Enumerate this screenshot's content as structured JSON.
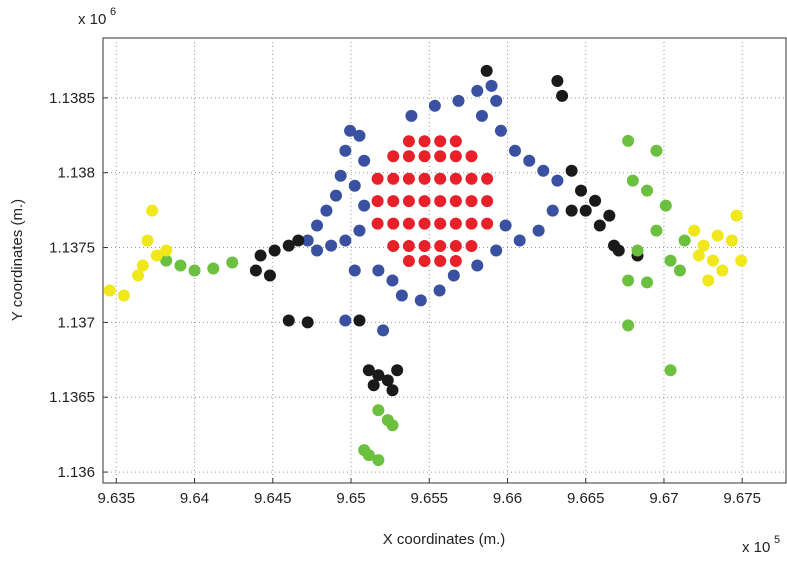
{
  "chart_data": {
    "type": "scatter",
    "xlabel": "X coordinates (m.)",
    "ylabel": "Y coordinates (m.)",
    "x_multiplier": "x 10",
    "x_exponent": "5",
    "y_multiplier": "x 10",
    "y_exponent": "6",
    "xlim": [
      963415,
      967780
    ],
    "ylim": [
      1135927,
      1138900
    ],
    "xticks": [
      {
        "value": 963500,
        "label": "9.635"
      },
      {
        "value": 964000,
        "label": "9.64"
      },
      {
        "value": 964500,
        "label": "9.645"
      },
      {
        "value": 965000,
        "label": "9.65"
      },
      {
        "value": 965500,
        "label": "9.655"
      },
      {
        "value": 966000,
        "label": "9.66"
      },
      {
        "value": 966500,
        "label": "9.665"
      },
      {
        "value": 967000,
        "label": "9.67"
      },
      {
        "value": 967500,
        "label": "9.675"
      }
    ],
    "yticks": [
      {
        "value": 1136000,
        "label": "1.136"
      },
      {
        "value": 1136500,
        "label": "1.1365"
      },
      {
        "value": 1137000,
        "label": "1.137"
      },
      {
        "value": 1137500,
        "label": "1.1375"
      },
      {
        "value": 1138000,
        "label": "1.138"
      },
      {
        "value": 1138500,
        "label": "1.1385"
      }
    ],
    "grid": true,
    "series": [
      {
        "color": "#3a50a0",
        "x": [
          964723,
          964783,
          964843,
          964904,
          964934,
          964964,
          964994,
          965054,
          965084,
          964783,
          964873,
          964964,
          965054,
          965084,
          965024,
          965175,
          965265,
          965325,
          965446,
          965566,
          965386,
          965536,
          965687,
          965807,
          965898,
          965928,
          965837,
          965958,
          966048,
          966139,
          966229,
          966319,
          966289,
          966199,
          966078,
          965988,
          965928,
          965807,
          965657,
          964964,
          965205,
          965024
        ],
        "values": [
          1137547,
          1137647,
          1137747,
          1137847,
          1137980,
          1138147,
          1138280,
          1138247,
          1138080,
          1137480,
          1137513,
          1137547,
          1137613,
          1137780,
          1137913,
          1137347,
          1137280,
          1137180,
          1137147,
          1137213,
          1138380,
          1138447,
          1138480,
          1138547,
          1138580,
          1138480,
          1138380,
          1138280,
          1138147,
          1138080,
          1138013,
          1137947,
          1137747,
          1137613,
          1137547,
          1137647,
          1137480,
          1137380,
          1137313,
          1137013,
          1136947,
          1137347
        ]
      },
      {
        "color": "#e8202a",
        "x": [
          965370,
          965470,
          965570,
          965670,
          965270,
          965370,
          965470,
          965570,
          965670,
          965770,
          965170,
          965270,
          965370,
          965470,
          965570,
          965670,
          965770,
          965870,
          965170,
          965270,
          965370,
          965470,
          965570,
          965670,
          965770,
          965870,
          965170,
          965270,
          965370,
          965470,
          965570,
          965670,
          965770,
          965870,
          965270,
          965370,
          965470,
          965570,
          965670,
          965770,
          965370,
          965470,
          965570,
          965670
        ],
        "values": [
          1138210,
          1138210,
          1138210,
          1138210,
          1138110,
          1138110,
          1138110,
          1138110,
          1138110,
          1138110,
          1137960,
          1137960,
          1137960,
          1137960,
          1137960,
          1137960,
          1137960,
          1137960,
          1137810,
          1137810,
          1137810,
          1137810,
          1137810,
          1137810,
          1137810,
          1137810,
          1137660,
          1137660,
          1137660,
          1137660,
          1137660,
          1137660,
          1137660,
          1137660,
          1137510,
          1137510,
          1137510,
          1137510,
          1137510,
          1137510,
          1137410,
          1137410,
          1137410,
          1137410
        ]
      },
      {
        "color": "#1a1a1a",
        "x": [
          964422,
          964512,
          964602,
          964663,
          964392,
          964602,
          964723,
          965054,
          965114,
          965175,
          965235,
          965295,
          965265,
          965145,
          966410,
          966470,
          966560,
          966651,
          966500,
          966590,
          966681,
          966410,
          966349,
          965867,
          966319,
          966711,
          966831,
          964482
        ],
        "values": [
          1137447,
          1137480,
          1137513,
          1137547,
          1137347,
          1137013,
          1137000,
          1137013,
          1136680,
          1136647,
          1136613,
          1136680,
          1136547,
          1136580,
          1138013,
          1137880,
          1137813,
          1137713,
          1137747,
          1137647,
          1137513,
          1137747,
          1138513,
          1138680,
          1138613,
          1137480,
          1137447,
          1137313
        ]
      },
      {
        "color": "#6cc040",
        "x": [
          963819,
          963910,
          964000,
          964120,
          964241,
          966771,
          966801,
          966892,
          967012,
          966952,
          966831,
          967042,
          967132,
          967102,
          966771,
          965175,
          965235,
          965265,
          965114,
          965175,
          965084,
          966771,
          967042,
          966892,
          966952
        ],
        "values": [
          1137413,
          1137380,
          1137347,
          1137360,
          1137400,
          1138213,
          1137947,
          1137880,
          1137780,
          1137613,
          1137480,
          1137413,
          1137547,
          1137347,
          1137280,
          1136413,
          1136347,
          1136313,
          1136113,
          1136080,
          1136147,
          1136980,
          1136680,
          1137267,
          1138147
        ]
      },
      {
        "color": "#f0e81a",
        "x": [
          963458,
          963548,
          963639,
          963669,
          963699,
          963729,
          963759,
          963819,
          967193,
          967253,
          967313,
          967373,
          967434,
          967464,
          967223,
          967343,
          967494,
          967283
        ],
        "values": [
          1137213,
          1137180,
          1137313,
          1137380,
          1137547,
          1137747,
          1137447,
          1137480,
          1137613,
          1137513,
          1137413,
          1137347,
          1137547,
          1137713,
          1137447,
          1137580,
          1137413,
          1137280
        ]
      }
    ]
  }
}
